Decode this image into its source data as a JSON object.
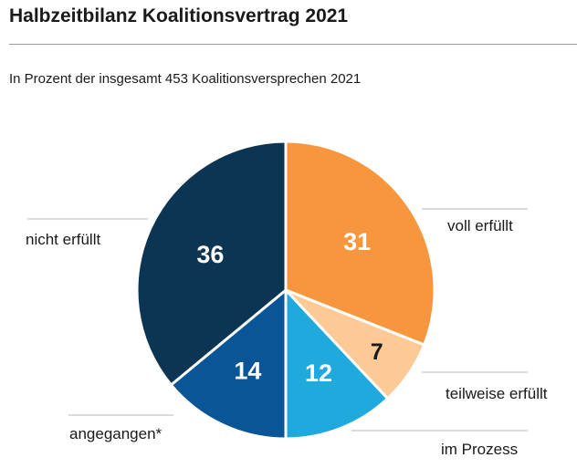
{
  "header": {
    "title": "Halbzeitbilanz Koalitionsvertrag 2021",
    "subtitle": "In Prozent der insgesamt 453 Koalitionsversprechen 2021"
  },
  "chart_data": {
    "type": "pie",
    "title": "Halbzeitbilanz Koalitionsvertrag 2021",
    "subtitle": "In Prozent der insgesamt 453 Koalitionsversprechen 2021",
    "unit": "%",
    "slices": [
      {
        "label": "voll erfüllt",
        "value": 31,
        "color": "#f7963d",
        "text_color": "#ffffff"
      },
      {
        "label": "teilweise erfüllt",
        "value": 7,
        "color": "#fdc994",
        "text_color": "#1a1a1a"
      },
      {
        "label": "im Prozess",
        "value": 12,
        "color": "#1fa9dc",
        "text_color": "#ffffff"
      },
      {
        "label": "angegangen*",
        "value": 14,
        "color": "#0a5596",
        "text_color": "#ffffff"
      },
      {
        "label": "nicht erfüllt",
        "value": 36,
        "color": "#0b3552",
        "text_color": "#ffffff"
      }
    ],
    "start_angle_deg": 0,
    "direction": "clockwise",
    "legend": "outside-labels"
  }
}
